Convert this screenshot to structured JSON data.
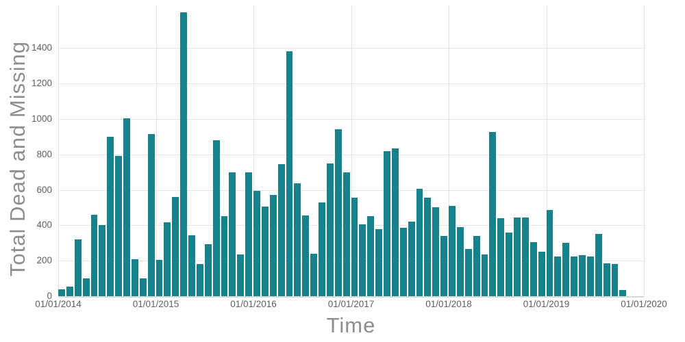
{
  "chart_data": {
    "type": "bar",
    "title": "",
    "xlabel": "Time",
    "ylabel": "Total Dead and Missing",
    "bar_color": "#17818c",
    "grid_color": "#e4e4e4",
    "axis_text_color": "#5f5f5f",
    "axis_title_color": "#8e8e8e",
    "ylim": [
      0,
      1640
    ],
    "yticks": [
      0,
      200,
      400,
      600,
      800,
      1000,
      1200,
      1400
    ],
    "xticks": [
      "01/01/2014",
      "01/01/2015",
      "01/01/2016",
      "01/01/2017",
      "01/01/2018",
      "01/01/2019",
      "01/01/2020"
    ],
    "months_per_tick": 12,
    "x": [
      "2014-01",
      "2014-02",
      "2014-03",
      "2014-04",
      "2014-05",
      "2014-06",
      "2014-07",
      "2014-08",
      "2014-09",
      "2014-10",
      "2014-11",
      "2014-12",
      "2015-01",
      "2015-02",
      "2015-03",
      "2015-04",
      "2015-05",
      "2015-06",
      "2015-07",
      "2015-08",
      "2015-09",
      "2015-10",
      "2015-11",
      "2015-12",
      "2016-01",
      "2016-02",
      "2016-03",
      "2016-04",
      "2016-05",
      "2016-06",
      "2016-07",
      "2016-08",
      "2016-09",
      "2016-10",
      "2016-11",
      "2016-12",
      "2017-01",
      "2017-02",
      "2017-03",
      "2017-04",
      "2017-05",
      "2017-06",
      "2017-07",
      "2017-08",
      "2017-09",
      "2017-10",
      "2017-11",
      "2017-12",
      "2018-01",
      "2018-02",
      "2018-03",
      "2018-04",
      "2018-05",
      "2018-06",
      "2018-07",
      "2018-08",
      "2018-09",
      "2018-10",
      "2018-11",
      "2018-12",
      "2019-01",
      "2019-02",
      "2019-03",
      "2019-04",
      "2019-05",
      "2019-06",
      "2019-07",
      "2019-08",
      "2019-09",
      "2019-10"
    ],
    "values": [
      40,
      55,
      320,
      100,
      460,
      400,
      900,
      790,
      1005,
      210,
      100,
      915,
      205,
      415,
      560,
      1600,
      345,
      180,
      295,
      880,
      450,
      700,
      235,
      700,
      595,
      505,
      570,
      745,
      1380,
      635,
      455,
      240,
      530,
      750,
      940,
      700,
      555,
      405,
      450,
      380,
      820,
      835,
      385,
      420,
      605,
      555,
      500,
      340,
      510,
      390,
      265,
      340,
      235,
      925,
      440,
      360,
      445,
      445,
      305,
      250,
      485,
      225,
      300,
      225,
      230,
      225,
      350,
      185,
      180,
      35
    ]
  }
}
